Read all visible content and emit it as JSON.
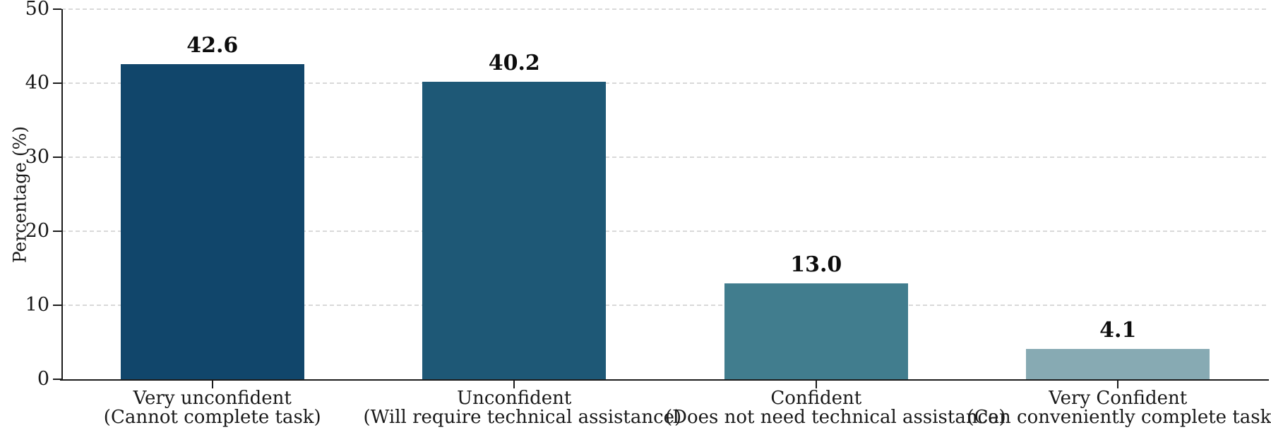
{
  "chart_data": {
    "type": "bar",
    "title": "",
    "xlabel": "",
    "ylabel": "Percentage (%)",
    "ylim": [
      0,
      50
    ],
    "yticks": [
      0,
      10,
      20,
      30,
      40,
      50
    ],
    "grid": "horizontal-dashed",
    "legend_position": "none",
    "categories": [
      {
        "line1": "Very unconfident",
        "line2": "(Cannot complete task)"
      },
      {
        "line1": "Unconfident",
        "line2": "(Will require technical assistance)"
      },
      {
        "line1": "Confident",
        "line2": "(Does not need technical assistance)"
      },
      {
        "line1": "Very Confident",
        "line2": "(Can conveniently complete task)"
      }
    ],
    "values": [
      42.6,
      40.2,
      13.0,
      4.1
    ],
    "value_labels": [
      "42.6",
      "40.2",
      "13.0",
      "4.1"
    ],
    "bar_colors": [
      "#11466b",
      "#1e5876",
      "#417d8e",
      "#87aab3"
    ],
    "grid_color": "#d9d9d9",
    "axis_color": "#1c1c1c",
    "text_color": "#1a1a1a",
    "background_color": "#ffffff"
  }
}
